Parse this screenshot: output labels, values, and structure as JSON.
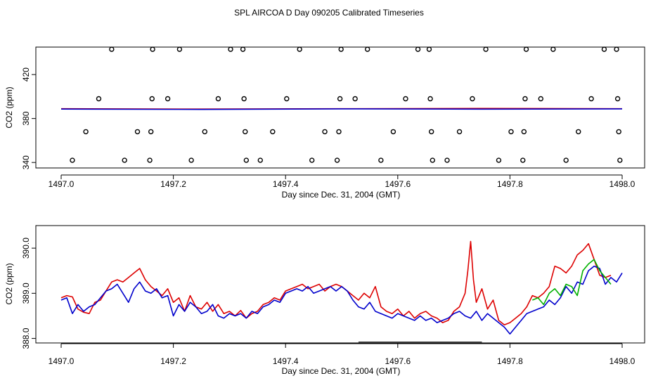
{
  "title": "SPL AIRCOA D  Day 090205  Calibrated Timeseries",
  "colors": {
    "red": "#dd0000",
    "blue": "#0000cc",
    "green": "#00b000",
    "axis": "#000000"
  },
  "chart_data": [
    {
      "type": "line",
      "xlabel": "Day since Dec. 31, 2004 (GMT)",
      "ylabel": "CO2 (ppm)",
      "xlim": [
        1497.0,
        1498.0
      ],
      "ylim": [
        335,
        445
      ],
      "x_ticks": [
        1497.0,
        1497.2,
        1497.4,
        1497.6,
        1497.8,
        1498.0
      ],
      "x_tick_labels": [
        "1497.0",
        "1497.2",
        "1497.4",
        "1497.6",
        "1497.8",
        "1498.0"
      ],
      "y_ticks": [
        340,
        380,
        420
      ],
      "y_tick_labels": [
        "340",
        "380",
        "420"
      ],
      "series": [
        {
          "name": "red",
          "color": "#dd0000",
          "x": [
            1497.0,
            1497.25,
            1497.5,
            1497.75,
            1498.0
          ],
          "y": [
            388.9,
            388.6,
            388.9,
            389.2,
            388.9
          ]
        },
        {
          "name": "blue",
          "color": "#0000cc",
          "x": [
            1497.0,
            1497.25,
            1497.5,
            1497.75,
            1498.0
          ],
          "y": [
            388.6,
            388.3,
            388.8,
            388.5,
            388.8
          ]
        }
      ],
      "markers": {
        "symbol": "circle",
        "points": [
          [
            1497.02,
            342
          ],
          [
            1497.044,
            368
          ],
          [
            1497.067,
            398
          ],
          [
            1497.09,
            443
          ],
          [
            1497.113,
            342
          ],
          [
            1497.136,
            368
          ],
          [
            1497.158,
            342
          ],
          [
            1497.16,
            368
          ],
          [
            1497.162,
            398
          ],
          [
            1497.163,
            443
          ],
          [
            1497.19,
            398
          ],
          [
            1497.211,
            443
          ],
          [
            1497.232,
            342
          ],
          [
            1497.256,
            368
          ],
          [
            1497.28,
            398
          ],
          [
            1497.302,
            443
          ],
          [
            1497.324,
            443
          ],
          [
            1497.326,
            398
          ],
          [
            1497.328,
            368
          ],
          [
            1497.33,
            342
          ],
          [
            1497.355,
            342
          ],
          [
            1497.377,
            368
          ],
          [
            1497.402,
            398
          ],
          [
            1497.425,
            443
          ],
          [
            1497.447,
            342
          ],
          [
            1497.47,
            368
          ],
          [
            1497.492,
            342
          ],
          [
            1497.495,
            368
          ],
          [
            1497.497,
            398
          ],
          [
            1497.499,
            443
          ],
          [
            1497.524,
            398
          ],
          [
            1497.546,
            443
          ],
          [
            1497.57,
            342
          ],
          [
            1497.592,
            368
          ],
          [
            1497.614,
            398
          ],
          [
            1497.636,
            443
          ],
          [
            1497.656,
            443
          ],
          [
            1497.658,
            398
          ],
          [
            1497.66,
            368
          ],
          [
            1497.662,
            342
          ],
          [
            1497.688,
            342
          ],
          [
            1497.71,
            368
          ],
          [
            1497.733,
            398
          ],
          [
            1497.757,
            443
          ],
          [
            1497.78,
            342
          ],
          [
            1497.802,
            368
          ],
          [
            1497.823,
            342
          ],
          [
            1497.825,
            368
          ],
          [
            1497.827,
            398
          ],
          [
            1497.829,
            443
          ],
          [
            1497.855,
            398
          ],
          [
            1497.877,
            443
          ],
          [
            1497.9,
            342
          ],
          [
            1497.922,
            368
          ],
          [
            1497.945,
            398
          ],
          [
            1497.968,
            443
          ],
          [
            1497.99,
            443
          ],
          [
            1497.992,
            398
          ],
          [
            1497.994,
            368
          ],
          [
            1497.996,
            342
          ]
        ]
      }
    },
    {
      "type": "line",
      "xlabel": "Day since Dec. 31, 2004 (GMT)",
      "ylabel": "CO2 (ppm)",
      "xlim": [
        1497.0,
        1498.0
      ],
      "ylim": [
        387.9,
        390.5
      ],
      "x_ticks": [
        1497.0,
        1497.2,
        1497.4,
        1497.6,
        1497.8,
        1498.0
      ],
      "x_tick_labels": [
        "1497.0",
        "1497.2",
        "1497.4",
        "1497.6",
        "1497.8",
        "1498.0"
      ],
      "y_ticks": [
        388.0,
        389.0,
        390.0
      ],
      "y_tick_labels": [
        "388.0",
        "389.0",
        "390.0"
      ],
      "baseline_segment": {
        "x": [
          1497.53,
          1497.75
        ],
        "y": 387.92
      },
      "series": [
        {
          "name": "red",
          "color": "#dd0000",
          "x": [
            1497.0,
            1497.01,
            1497.02,
            1497.03,
            1497.04,
            1497.05,
            1497.06,
            1497.07,
            1497.08,
            1497.09,
            1497.1,
            1497.11,
            1497.12,
            1497.13,
            1497.14,
            1497.15,
            1497.16,
            1497.17,
            1497.18,
            1497.19,
            1497.2,
            1497.21,
            1497.22,
            1497.23,
            1497.24,
            1497.25,
            1497.26,
            1497.27,
            1497.28,
            1497.29,
            1497.3,
            1497.31,
            1497.32,
            1497.33,
            1497.34,
            1497.35,
            1497.36,
            1497.37,
            1497.38,
            1497.39,
            1497.4,
            1497.41,
            1497.42,
            1497.43,
            1497.44,
            1497.45,
            1497.46,
            1497.47,
            1497.48,
            1497.49,
            1497.5,
            1497.51,
            1497.52,
            1497.53,
            1497.54,
            1497.55,
            1497.56,
            1497.57,
            1497.58,
            1497.59,
            1497.6,
            1497.61,
            1497.62,
            1497.63,
            1497.64,
            1497.65,
            1497.66,
            1497.67,
            1497.68,
            1497.69,
            1497.7,
            1497.71,
            1497.72,
            1497.725,
            1497.73,
            1497.735,
            1497.74,
            1497.75,
            1497.76,
            1497.77,
            1497.78,
            1497.79,
            1497.8,
            1497.81,
            1497.82,
            1497.83,
            1497.84,
            1497.85,
            1497.86,
            1497.87,
            1497.88,
            1497.89,
            1497.9,
            1497.91,
            1497.92,
            1497.93,
            1497.94,
            1497.95,
            1497.96,
            1497.97,
            1497.98
          ],
          "y": [
            388.9,
            388.95,
            388.92,
            388.65,
            388.58,
            388.55,
            388.8,
            388.85,
            389.05,
            389.25,
            389.3,
            389.25,
            389.35,
            389.45,
            389.55,
            389.3,
            389.15,
            389.05,
            388.95,
            389.1,
            388.8,
            388.9,
            388.6,
            388.95,
            388.7,
            388.65,
            388.8,
            388.6,
            388.75,
            388.55,
            388.6,
            388.5,
            388.62,
            388.45,
            388.55,
            388.6,
            388.75,
            388.8,
            388.9,
            388.85,
            389.05,
            389.1,
            389.15,
            389.2,
            389.1,
            389.15,
            389.2,
            389.05,
            389.15,
            389.2,
            389.15,
            389.05,
            388.95,
            388.85,
            389.0,
            388.9,
            389.15,
            388.7,
            388.6,
            388.55,
            388.65,
            388.5,
            388.6,
            388.45,
            388.55,
            388.6,
            388.5,
            388.45,
            388.35,
            388.4,
            388.6,
            388.7,
            389.0,
            389.5,
            390.15,
            389.3,
            388.8,
            389.1,
            388.65,
            388.85,
            388.4,
            388.3,
            388.35,
            388.45,
            388.55,
            388.7,
            388.95,
            388.9,
            389.0,
            389.15,
            389.6,
            389.55,
            389.45,
            389.6,
            389.85,
            389.95,
            390.1,
            389.75,
            389.4,
            389.35,
            389.4
          ]
        },
        {
          "name": "blue",
          "color": "#0000cc",
          "x": [
            1497.0,
            1497.01,
            1497.02,
            1497.03,
            1497.04,
            1497.05,
            1497.06,
            1497.07,
            1497.08,
            1497.09,
            1497.1,
            1497.11,
            1497.12,
            1497.13,
            1497.14,
            1497.15,
            1497.16,
            1497.17,
            1497.18,
            1497.19,
            1497.2,
            1497.21,
            1497.22,
            1497.23,
            1497.24,
            1497.25,
            1497.26,
            1497.27,
            1497.28,
            1497.29,
            1497.3,
            1497.31,
            1497.32,
            1497.33,
            1497.34,
            1497.35,
            1497.36,
            1497.37,
            1497.38,
            1497.39,
            1497.4,
            1497.41,
            1497.42,
            1497.43,
            1497.44,
            1497.45,
            1497.46,
            1497.47,
            1497.48,
            1497.49,
            1497.5,
            1497.51,
            1497.52,
            1497.53,
            1497.54,
            1497.55,
            1497.56,
            1497.57,
            1497.58,
            1497.59,
            1497.6,
            1497.61,
            1497.62,
            1497.63,
            1497.64,
            1497.65,
            1497.66,
            1497.67,
            1497.68,
            1497.69,
            1497.7,
            1497.71,
            1497.72,
            1497.73,
            1497.74,
            1497.75,
            1497.76,
            1497.77,
            1497.78,
            1497.79,
            1497.8,
            1497.81,
            1497.82,
            1497.83,
            1497.84,
            1497.85,
            1497.86,
            1497.87,
            1497.88,
            1497.89,
            1497.9,
            1497.91,
            1497.92,
            1497.93,
            1497.94,
            1497.95,
            1497.96,
            1497.97,
            1497.98,
            1497.99,
            1498.0
          ],
          "y": [
            388.85,
            388.9,
            388.55,
            388.75,
            388.6,
            388.7,
            388.75,
            388.9,
            389.05,
            389.1,
            389.2,
            389.0,
            388.8,
            389.1,
            389.25,
            389.05,
            389.0,
            389.1,
            388.9,
            388.95,
            388.5,
            388.75,
            388.6,
            388.8,
            388.7,
            388.55,
            388.6,
            388.75,
            388.5,
            388.45,
            388.55,
            388.5,
            388.55,
            388.45,
            388.6,
            388.55,
            388.7,
            388.75,
            388.85,
            388.8,
            389.0,
            389.05,
            389.1,
            389.05,
            389.15,
            389.0,
            389.05,
            389.1,
            389.15,
            389.05,
            389.15,
            389.05,
            388.85,
            388.7,
            388.65,
            388.8,
            388.6,
            388.55,
            388.5,
            388.45,
            388.55,
            388.5,
            388.45,
            388.4,
            388.5,
            388.4,
            388.45,
            388.35,
            388.4,
            388.45,
            388.55,
            388.6,
            388.5,
            388.45,
            388.6,
            388.4,
            388.55,
            388.45,
            388.35,
            388.25,
            388.1,
            388.25,
            388.4,
            388.55,
            388.6,
            388.65,
            388.7,
            388.85,
            388.75,
            388.9,
            389.15,
            389.0,
            389.25,
            389.2,
            389.5,
            389.6,
            389.55,
            389.2,
            389.35,
            389.25,
            389.45
          ]
        },
        {
          "name": "green",
          "color": "#00b000",
          "x": [
            1497.84,
            1497.85,
            1497.86,
            1497.87,
            1497.88,
            1497.89,
            1497.9,
            1497.91,
            1497.92,
            1497.93,
            1497.94,
            1497.95,
            1497.96,
            1497.97,
            1497.98
          ],
          "y": [
            388.85,
            388.9,
            388.75,
            389.0,
            389.1,
            388.95,
            389.2,
            389.15,
            388.95,
            389.5,
            389.65,
            389.75,
            389.5,
            389.35,
            389.2
          ]
        }
      ]
    }
  ]
}
